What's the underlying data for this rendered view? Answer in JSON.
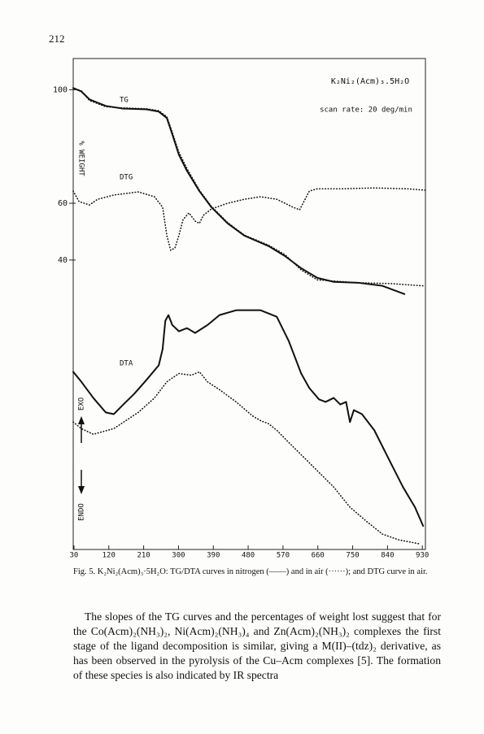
{
  "page_number": "212",
  "chart_data": {
    "type": "line",
    "xlim": [
      28,
      938
    ],
    "ylim": [
      -62,
      111
    ],
    "xticks": [
      30,
      120,
      210,
      300,
      390,
      480,
      570,
      660,
      750,
      840,
      930
    ],
    "yticks": [
      40,
      60,
      100
    ],
    "y_label": "% WEIGHT",
    "annotations": [
      "TG",
      "DTG",
      "DTA",
      "EXO",
      "ENDO",
      "K₂Ni₂(Acm)₃.5H₂O",
      "scan rate: 20 deg/min"
    ],
    "series": [
      {
        "style": "solid",
        "color": "#111111",
        "x": [
          28,
          49,
          70,
          112,
          154,
          217,
          249,
          270,
          284,
          301,
          322,
          354,
          385,
          427,
          470,
          533,
          575,
          617,
          659,
          701,
          764,
          827,
          884
        ],
        "values": [
          100.6,
          99.4,
          96.6,
          94.3,
          93.4,
          93.1,
          92.3,
          90,
          84.3,
          77.1,
          71.4,
          64.3,
          58.6,
          52.9,
          48.6,
          44.9,
          41.4,
          37.1,
          33.7,
          32.3,
          32,
          30.9,
          28
        ]
      },
      {
        "style": "dotted",
        "color": "#111111",
        "x": [
          28,
          49,
          70,
          112,
          154,
          217,
          249,
          270,
          284,
          301,
          322,
          354,
          385,
          427,
          470,
          533,
          575,
          617,
          659,
          701,
          764,
          848,
          932
        ],
        "values": [
          100.6,
          99.6,
          96.2,
          94,
          93.6,
          93.3,
          92.6,
          90.5,
          85,
          78,
          72.2,
          64.6,
          58.9,
          53.2,
          48.8,
          45.2,
          41.9,
          36.5,
          33,
          32.6,
          32,
          31.7,
          30.9
        ]
      },
      {
        "style": "dotted",
        "color": "#111111",
        "x": [
          28,
          43,
          70,
          91,
          133,
          196,
          238,
          259,
          270,
          280,
          291,
          301,
          312,
          327,
          343,
          354,
          364,
          385,
          427,
          470,
          512,
          554,
          596,
          613,
          627,
          638,
          659,
          722,
          806,
          890,
          938
        ],
        "values": [
          64.3,
          60.6,
          59.4,
          61.4,
          62.9,
          64,
          62.3,
          58.6,
          48.6,
          43.4,
          44.3,
          48.6,
          54.3,
          56.6,
          53.7,
          52.9,
          55.7,
          58,
          60,
          61.4,
          62.3,
          61.4,
          58.6,
          57.7,
          61.4,
          64.3,
          65.1,
          65.1,
          65.4,
          65.1,
          64.6
        ]
      },
      {
        "style": "solid",
        "color": "#111111",
        "x": [
          28,
          49,
          80,
          112,
          133,
          154,
          186,
          217,
          249,
          259,
          266,
          274,
          284,
          301,
          322,
          343,
          375,
          406,
          449,
          512,
          554,
          585,
          617,
          638,
          663,
          680,
          701,
          718,
          733,
          743,
          753,
          774,
          806,
          848,
          880,
          911,
          932
        ],
        "values": [
          0.6,
          -2.9,
          -8.6,
          -13.7,
          -14.3,
          -11.4,
          -7.1,
          -2.3,
          2.9,
          8.6,
          18.6,
          20.6,
          17.1,
          14.9,
          16,
          14.3,
          17.1,
          20.6,
          22.3,
          22.3,
          20,
          11.4,
          0,
          -5.1,
          -9.1,
          -10,
          -8.6,
          -10.9,
          -10,
          -17.1,
          -12.9,
          -14.3,
          -20,
          -31.4,
          -40,
          -47.1,
          -53.7
        ]
      },
      {
        "style": "dotted",
        "color": "#111111",
        "x": [
          28,
          49,
          80,
          133,
          196,
          238,
          270,
          301,
          333,
          354,
          375,
          406,
          449,
          491,
          512,
          533,
          554,
          585,
          617,
          659,
          701,
          743,
          785,
          827,
          869,
          922
        ],
        "values": [
          -17.1,
          -19.4,
          -21.4,
          -19.4,
          -13.7,
          -8.6,
          -2.9,
          0,
          -0.6,
          0.6,
          -2.9,
          -5.7,
          -10,
          -14.9,
          -16.6,
          -17.7,
          -20,
          -24.3,
          -28.6,
          -34.3,
          -40,
          -47.1,
          -52,
          -56.6,
          -58.6,
          -60
        ]
      }
    ]
  },
  "caption": "Fig. 5. K₂Ni₂(Acm)₃·5H₂O: TG/DTA curves in nitrogen (——) and in air (······); and DTG curve in air.",
  "body": "The slopes of the TG curves and the percentages of weight lost suggest that for the Co(Acm)₂(NH₃)₂, Ni(Acm)₂(NH₃)₄ and Zn(Acm)₂(NH₃)₂ complexes the first stage of the ligand decomposition is similar, giving a M(II)–(tdz)₂ derivative, as has been observed in the pyrolysis of the Cu–Acm complexes [5]. The formation of these species is also indicated by IR spectra"
}
